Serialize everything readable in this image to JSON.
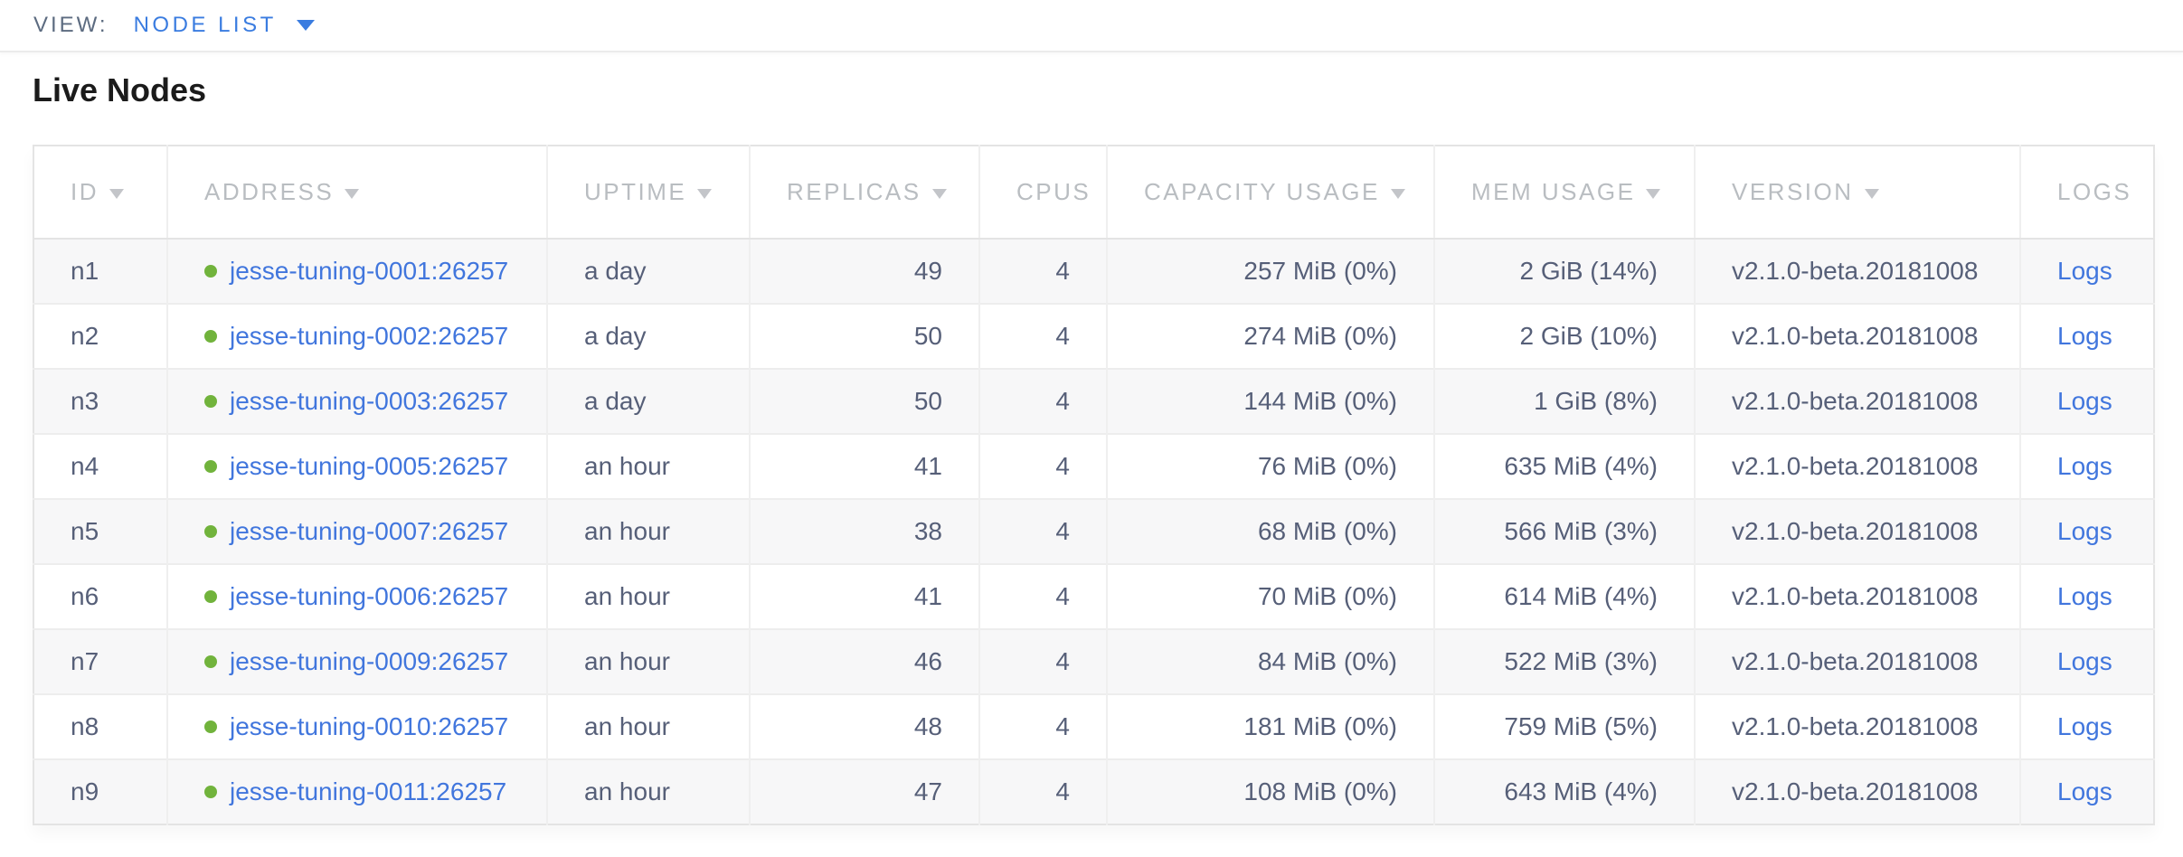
{
  "view_bar": {
    "label": "VIEW:",
    "selected": "NODE LIST"
  },
  "page": {
    "title": "Live Nodes"
  },
  "table": {
    "columns": [
      {
        "key": "id",
        "label": "ID",
        "sortable": true,
        "align": "left"
      },
      {
        "key": "address",
        "label": "ADDRESS",
        "sortable": true,
        "align": "left"
      },
      {
        "key": "uptime",
        "label": "UPTIME",
        "sortable": true,
        "align": "left"
      },
      {
        "key": "replicas",
        "label": "REPLICAS",
        "sortable": true,
        "align": "right"
      },
      {
        "key": "cpus",
        "label": "CPUS",
        "sortable": false,
        "align": "right"
      },
      {
        "key": "capacity",
        "label": "CAPACITY USAGE",
        "sortable": true,
        "align": "right"
      },
      {
        "key": "mem",
        "label": "MEM USAGE",
        "sortable": true,
        "align": "right"
      },
      {
        "key": "version",
        "label": "VERSION",
        "sortable": true,
        "align": "left"
      },
      {
        "key": "logs",
        "label": "LOGS",
        "sortable": false,
        "align": "left"
      }
    ],
    "rows": [
      {
        "id": "n1",
        "address": "jesse-tuning-0001:26257",
        "uptime": "a day",
        "replicas": "49",
        "cpus": "4",
        "capacity": "257 MiB (0%)",
        "mem": "2 GiB (14%)",
        "version": "v2.1.0-beta.20181008",
        "logs": "Logs"
      },
      {
        "id": "n2",
        "address": "jesse-tuning-0002:26257",
        "uptime": "a day",
        "replicas": "50",
        "cpus": "4",
        "capacity": "274 MiB (0%)",
        "mem": "2 GiB (10%)",
        "version": "v2.1.0-beta.20181008",
        "logs": "Logs"
      },
      {
        "id": "n3",
        "address": "jesse-tuning-0003:26257",
        "uptime": "a day",
        "replicas": "50",
        "cpus": "4",
        "capacity": "144 MiB (0%)",
        "mem": "1 GiB (8%)",
        "version": "v2.1.0-beta.20181008",
        "logs": "Logs"
      },
      {
        "id": "n4",
        "address": "jesse-tuning-0005:26257",
        "uptime": "an hour",
        "replicas": "41",
        "cpus": "4",
        "capacity": "76 MiB (0%)",
        "mem": "635 MiB (4%)",
        "version": "v2.1.0-beta.20181008",
        "logs": "Logs"
      },
      {
        "id": "n5",
        "address": "jesse-tuning-0007:26257",
        "uptime": "an hour",
        "replicas": "38",
        "cpus": "4",
        "capacity": "68 MiB (0%)",
        "mem": "566 MiB (3%)",
        "version": "v2.1.0-beta.20181008",
        "logs": "Logs"
      },
      {
        "id": "n6",
        "address": "jesse-tuning-0006:26257",
        "uptime": "an hour",
        "replicas": "41",
        "cpus": "4",
        "capacity": "70 MiB (0%)",
        "mem": "614 MiB (4%)",
        "version": "v2.1.0-beta.20181008",
        "logs": "Logs"
      },
      {
        "id": "n7",
        "address": "jesse-tuning-0009:26257",
        "uptime": "an hour",
        "replicas": "46",
        "cpus": "4",
        "capacity": "84 MiB (0%)",
        "mem": "522 MiB (3%)",
        "version": "v2.1.0-beta.20181008",
        "logs": "Logs"
      },
      {
        "id": "n8",
        "address": "jesse-tuning-0010:26257",
        "uptime": "an hour",
        "replicas": "48",
        "cpus": "4",
        "capacity": "181 MiB (0%)",
        "mem": "759 MiB (5%)",
        "version": "v2.1.0-beta.20181008",
        "logs": "Logs"
      },
      {
        "id": "n9",
        "address": "jesse-tuning-0011:26257",
        "uptime": "an hour",
        "replicas": "47",
        "cpus": "4",
        "capacity": "108 MiB (0%)",
        "mem": "643 MiB (4%)",
        "version": "v2.1.0-beta.20181008",
        "logs": "Logs"
      }
    ]
  },
  "colors": {
    "accent-blue": "#3a7ce0",
    "link-blue": "#4176dd",
    "live-green": "#71b33c",
    "header-gray": "#b9bdc1",
    "cell-text": "#565f78"
  }
}
